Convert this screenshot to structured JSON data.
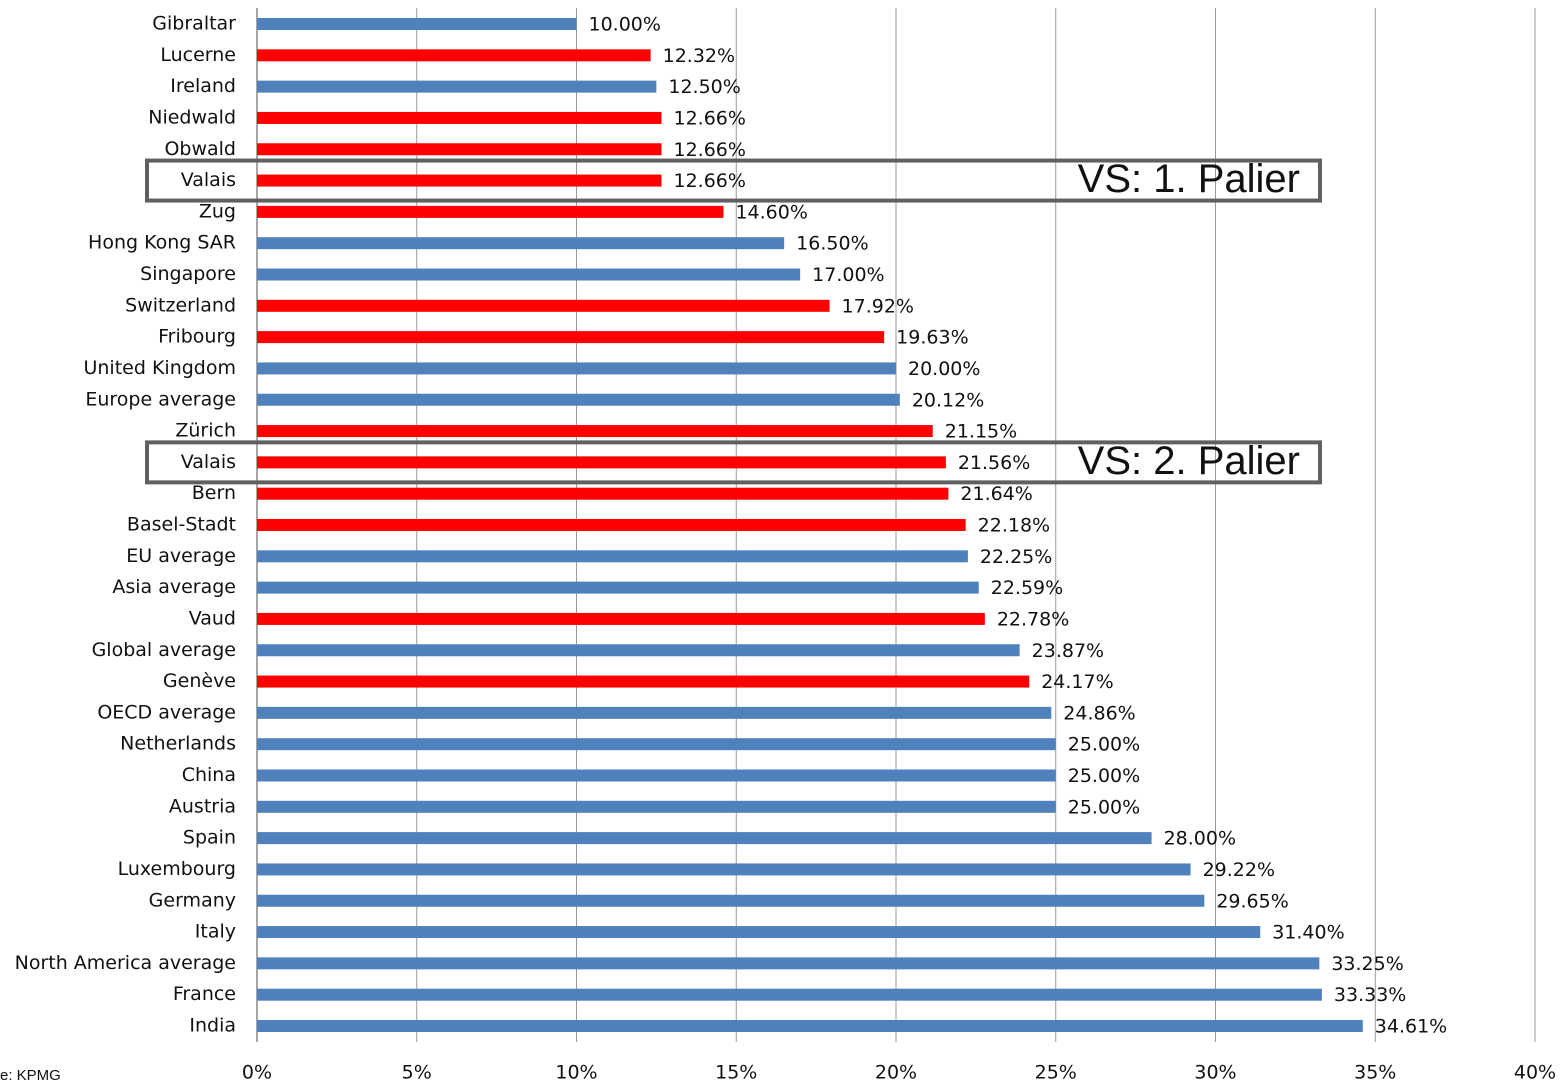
{
  "chart_data": {
    "type": "barh",
    "categories": [
      "Gibraltar",
      "Lucerne",
      "Ireland",
      "Niedwald",
      "Obwald",
      "Valais",
      "Zug",
      "Hong Kong SAR",
      "Singapore",
      "Switzerland",
      "Fribourg",
      "United Kingdom",
      "Europe average",
      "Zürich",
      "Valais",
      "Bern",
      "Basel-Stadt",
      "EU average",
      "Asia average",
      "Vaud",
      "Global average",
      "Genève",
      "OECD average",
      "Netherlands",
      "China",
      "Austria",
      "Spain",
      "Luxembourg",
      "Germany",
      "Italy",
      "North America average",
      "France",
      "India"
    ],
    "values": [
      10.0,
      12.32,
      12.5,
      12.66,
      12.66,
      12.66,
      14.6,
      16.5,
      17.0,
      17.92,
      19.63,
      20.0,
      20.12,
      21.15,
      21.56,
      21.64,
      22.18,
      22.25,
      22.59,
      22.78,
      23.87,
      24.17,
      24.86,
      25.0,
      25.0,
      25.0,
      28.0,
      29.22,
      29.65,
      31.4,
      33.25,
      33.33,
      34.61
    ],
    "value_labels": [
      "10.00%",
      "12.32%",
      "12.50%",
      "12.66%",
      "12.66%",
      "12.66%",
      "14.60%",
      "16.50%",
      "17.00%",
      "17.92%",
      "19.63%",
      "20.00%",
      "20.12%",
      "21.15%",
      "21.56%",
      "21.64%",
      "22.18%",
      "22.25%",
      "22.59%",
      "22.78%",
      "23.87%",
      "24.17%",
      "24.86%",
      "25.00%",
      "25.00%",
      "25.00%",
      "28.00%",
      "29.22%",
      "29.65%",
      "31.40%",
      "33.25%",
      "33.33%",
      "34.61%"
    ],
    "colors": [
      "#4f81bd",
      "#ff0000",
      "#4f81bd",
      "#ff0000",
      "#ff0000",
      "#ff0000",
      "#ff0000",
      "#4f81bd",
      "#4f81bd",
      "#ff0000",
      "#ff0000",
      "#4f81bd",
      "#4f81bd",
      "#ff0000",
      "#ff0000",
      "#ff0000",
      "#ff0000",
      "#4f81bd",
      "#4f81bd",
      "#ff0000",
      "#4f81bd",
      "#ff0000",
      "#4f81bd",
      "#4f81bd",
      "#4f81bd",
      "#4f81bd",
      "#4f81bd",
      "#4f81bd",
      "#4f81bd",
      "#4f81bd",
      "#4f81bd",
      "#4f81bd",
      "#4f81bd"
    ],
    "xlim": [
      0,
      40
    ],
    "xticks": [
      {
        "value": 0,
        "label": "0%"
      },
      {
        "value": 5,
        "label": "5%"
      },
      {
        "value": 10,
        "label": "10%"
      },
      {
        "value": 15,
        "label": "15%"
      },
      {
        "value": 20,
        "label": "20%"
      },
      {
        "value": 25,
        "label": "25%"
      },
      {
        "value": 30,
        "label": "30%"
      },
      {
        "value": 35,
        "label": "35%"
      },
      {
        "value": 40,
        "label": "40%"
      }
    ],
    "grid": true,
    "annotations": [
      "VS: 1. Palier",
      "VS: 2. Palier"
    ],
    "source": "e: KPMG"
  }
}
